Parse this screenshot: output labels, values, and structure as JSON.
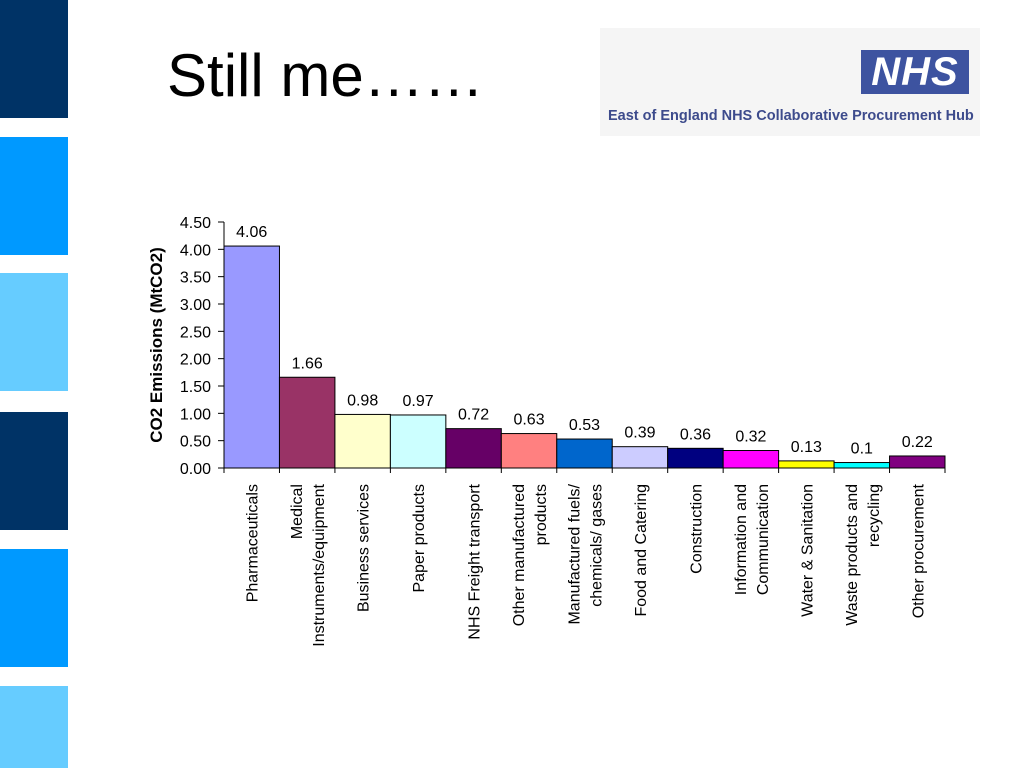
{
  "slide": {
    "title": "Still me……",
    "side_colors": [
      "#003366",
      "#0099ff",
      "#66ccff",
      "#003366",
      "#0099ff",
      "#66ccff"
    ]
  },
  "logo": {
    "mark": "NHS",
    "org": "East of England NHS Collaborative Procurement Hub",
    "color": "#3d53a0"
  },
  "chart_data": {
    "type": "bar",
    "title": "",
    "xlabel": "",
    "ylabel": "CO2 Emissions (MtCO2)",
    "ylim": [
      0,
      4.5
    ],
    "yticks": [
      "0.00",
      "0.50",
      "1.00",
      "1.50",
      "2.00",
      "2.50",
      "3.00",
      "3.50",
      "4.00",
      "4.50"
    ],
    "grid": false,
    "legend": "none",
    "categories": [
      [
        "Pharmaceuticals"
      ],
      [
        "Medical",
        "Instruments/equipment"
      ],
      [
        "Business services"
      ],
      [
        "Paper products"
      ],
      [
        "NHS Freight transport"
      ],
      [
        "Other manufactured",
        "products"
      ],
      [
        "Manufactured fuels/",
        "chemicals/ gases"
      ],
      [
        "Food and Catering"
      ],
      [
        "Construction"
      ],
      [
        "Information and",
        "Communication"
      ],
      [
        "Water & Sanitation"
      ],
      [
        "Waste products and",
        "recycling"
      ],
      [
        "Other procurement"
      ]
    ],
    "values": [
      4.06,
      1.66,
      0.98,
      0.97,
      0.72,
      0.63,
      0.53,
      0.39,
      0.36,
      0.32,
      0.13,
      0.1,
      0.22
    ],
    "value_labels": [
      "4.06",
      "1.66",
      "0.98",
      "0.97",
      "0.72",
      "0.63",
      "0.53",
      "0.39",
      "0.36",
      "0.32",
      "0.13",
      "0.1",
      "0.22"
    ],
    "colors": [
      "#9999ff",
      "#993366",
      "#ffffcc",
      "#ccffff",
      "#660066",
      "#ff8080",
      "#0066cc",
      "#ccccff",
      "#000080",
      "#ff00ff",
      "#ffff00",
      "#00ffff",
      "#800080"
    ]
  }
}
